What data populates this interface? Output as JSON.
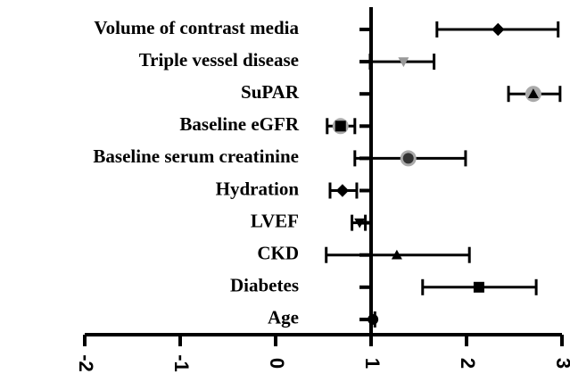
{
  "chart_data": {
    "type": "forest",
    "categories": [
      "Volume of contrast media",
      "Triple vessel disease",
      "SuPAR",
      "Baseline eGFR",
      "Baseline serum creatinine",
      "Hydration",
      "LVEF",
      "CKD",
      "Diabetes",
      "Age"
    ],
    "values": [
      2.33,
      1.34,
      2.7,
      0.68,
      1.39,
      0.7,
      0.88,
      1.27,
      2.13,
      1.02
    ],
    "lower": [
      1.69,
      0.99,
      2.44,
      0.54,
      0.83,
      0.57,
      0.8,
      0.53,
      1.54,
      1.0
    ],
    "upper": [
      2.96,
      1.66,
      2.98,
      0.83,
      1.99,
      0.85,
      0.94,
      2.03,
      2.73,
      1.04
    ],
    "markers": [
      "diamond",
      "triangle-down",
      "triangle-up",
      "square",
      "circle",
      "diamond",
      "triangle-down",
      "triangle-up",
      "square",
      "circle"
    ],
    "marker_colors": [
      "#000000",
      "#999999",
      "#000000",
      "#000000",
      "#333333",
      "#000000",
      "#000000",
      "#000000",
      "#000000",
      "#000000"
    ],
    "marker_halo": [
      false,
      false,
      true,
      true,
      true,
      false,
      false,
      false,
      false,
      false
    ],
    "ref_line": 1,
    "xlim": [
      -2,
      3
    ],
    "xticks": [
      -2,
      -1,
      0,
      1,
      2,
      3
    ]
  }
}
